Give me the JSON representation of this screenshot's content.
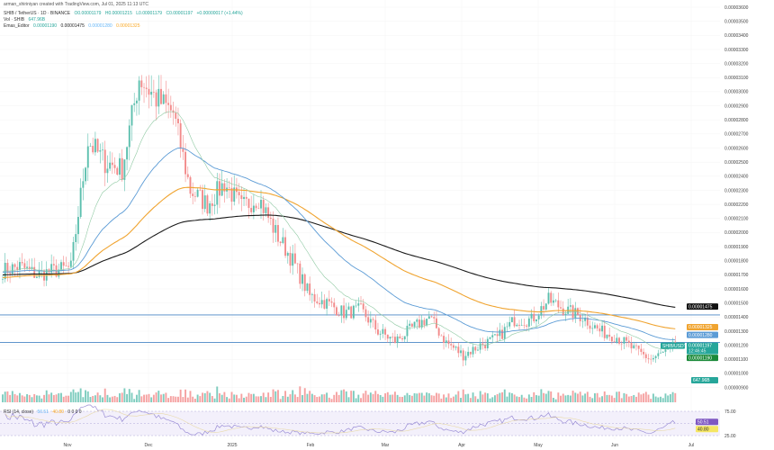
{
  "attribution": "arman_shiriniyan created with TradingView.com, Jul 01, 2025 11:13 UTC",
  "legend": {
    "symbol": "SHIB / TetherUS · 1D · BINANCE",
    "open": "O0.00001179",
    "high": "H0.00001215",
    "low": "L0.00001179",
    "close": "C0.00001197",
    "change": "+0.00000017 (+1.44%)",
    "volume_label": "Vol · SHIB",
    "volume_value": "647.96B",
    "ema_label": "Emas_Editor",
    "ema_values": [
      "0.00001190",
      "0.00001475",
      "0.00001280",
      "0.00001325"
    ],
    "rsi_label": "RSI (14, close)",
    "rsi_value": "50.51",
    "rsi_ma_value": "40.80",
    "rsi_extra": "0 0 0 0"
  },
  "colors": {
    "up": "#5cbfae",
    "down": "#f28a8a",
    "ema20": "#8fc9a3",
    "ema50": "#5b9bd5",
    "ema100": "#f0a430",
    "ema200": "#1a1a1a",
    "hline": "#4a86c5",
    "rsi": "#9b8ed6"
  },
  "chart_data": {
    "type": "candlestick",
    "symbol": "SHIB/USDT",
    "interval": "1D",
    "x_tick_labels": [
      "Nov",
      "Dec",
      "2025",
      "Feb",
      "Mar",
      "Apr",
      "May",
      "Jun",
      "Jul"
    ],
    "y_tick_labels": [
      "0.00003600",
      "0.00003500",
      "0.00003400",
      "0.00003300",
      "0.00003200",
      "0.00003100",
      "0.00003000",
      "0.00002900",
      "0.00002800",
      "0.00002700",
      "0.00002600",
      "0.00002500",
      "0.00002400",
      "0.00002300",
      "0.00002200",
      "0.00002100",
      "0.00002000",
      "0.00001900",
      "0.00001800",
      "0.00001700",
      "0.00001600",
      "0.00001500",
      "0.00001400",
      "0.00001300",
      "0.00001200",
      "0.00001100",
      "0.00001000",
      "0.00000900"
    ],
    "ylim": [
      9e-06,
      3.65e-05
    ],
    "weekly_closes_e6": [
      17.3,
      17.6,
      17.0,
      17.3,
      17.5,
      26.5,
      25.0,
      24.5,
      31.0,
      29.5,
      28.5,
      23.0,
      22.0,
      23.5,
      21.8,
      22.5,
      20.0,
      18.0,
      15.5,
      15.0,
      14.3,
      14.5,
      13.0,
      12.3,
      13.2,
      14.0,
      12.2,
      11.3,
      12.0,
      12.5,
      13.8,
      13.8,
      15.2,
      14.5,
      14.0,
      13.0,
      12.6,
      11.7,
      11.0,
      11.6,
      11.97
    ],
    "horizontal_lines": [
      1.415e-05,
      1.22e-05
    ],
    "price_labels": {
      "ema200": "0.00001475",
      "ema100": "0.00001325",
      "ema50": "0.00001280",
      "symbol_tag": "SHIB/USDT",
      "last": "0.00001197",
      "countdown": "12:46:45",
      "ema20": "0.00001190",
      "volume": "647.96B"
    },
    "rsi_axis": [
      "75.00",
      "25.00"
    ],
    "rsi_levels": [
      75,
      50,
      25
    ]
  }
}
